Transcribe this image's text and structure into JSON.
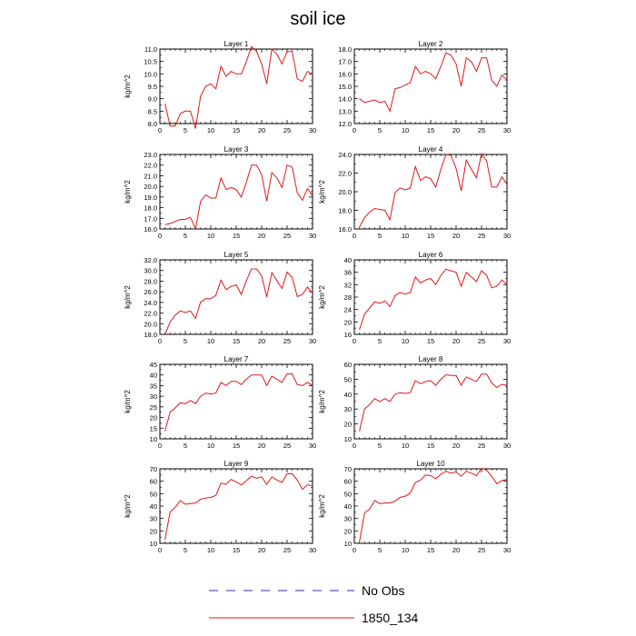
{
  "title": "soil ice",
  "legend": {
    "items": [
      {
        "label": "No Obs",
        "color": "#2f2fa0",
        "style": "dashed"
      },
      {
        "label": "1850_134",
        "color": "#e01818",
        "style": "solid"
      }
    ]
  },
  "chart_data": [
    {
      "type": "line",
      "title": "Layer 1",
      "xlabel": "",
      "ylabel": "kg/m^2",
      "xlim": [
        0,
        30
      ],
      "ylim": [
        8.0,
        11.0
      ],
      "xticks": [
        "0",
        "5",
        "10",
        "15",
        "20",
        "25",
        "30"
      ],
      "yticks": [
        "8.0",
        "8.5",
        "9.0",
        "9.5",
        "10.0",
        "10.5",
        "11.0"
      ],
      "x": [
        1,
        2,
        3,
        4,
        5,
        6,
        7,
        8,
        9,
        10,
        11,
        12,
        13,
        14,
        15,
        16,
        17,
        18,
        19,
        20,
        21,
        22,
        23,
        24,
        25,
        26,
        27,
        28,
        29,
        30
      ],
      "series": [
        {
          "name": "1850_134",
          "color": "#e01818",
          "values": [
            8.8,
            7.9,
            7.9,
            8.4,
            8.5,
            8.5,
            7.8,
            9.1,
            9.5,
            9.6,
            9.4,
            10.3,
            9.9,
            10.1,
            10.0,
            10.0,
            10.5,
            11.1,
            10.9,
            10.4,
            9.6,
            11.0,
            10.8,
            10.4,
            10.9,
            10.9,
            9.8,
            9.7,
            10.1,
            10.0
          ]
        }
      ]
    },
    {
      "type": "line",
      "title": "Layer 2",
      "xlabel": "",
      "ylabel": "",
      "xlim": [
        0,
        30
      ],
      "ylim": [
        12.0,
        18.0
      ],
      "xticks": [
        "0",
        "5",
        "10",
        "15",
        "20",
        "25",
        "30"
      ],
      "yticks": [
        "12.0",
        "13.0",
        "14.0",
        "15.0",
        "16.0",
        "17.0",
        "18.0"
      ],
      "x": [
        1,
        2,
        3,
        4,
        5,
        6,
        7,
        8,
        9,
        10,
        11,
        12,
        13,
        14,
        15,
        16,
        17,
        18,
        19,
        20,
        21,
        22,
        23,
        24,
        25,
        26,
        27,
        28,
        29,
        30
      ],
      "series": [
        {
          "name": "1850_134",
          "color": "#e01818",
          "values": [
            14.0,
            13.7,
            13.8,
            13.9,
            13.7,
            13.8,
            13.0,
            14.8,
            14.9,
            15.1,
            15.3,
            16.6,
            16.0,
            16.2,
            16.0,
            15.6,
            16.6,
            17.7,
            17.5,
            16.8,
            15.0,
            17.3,
            17.0,
            16.2,
            17.3,
            17.3,
            15.5,
            15.0,
            15.9,
            15.5
          ]
        }
      ]
    },
    {
      "type": "line",
      "title": "Layer 3",
      "xlabel": "",
      "ylabel": "kg/m^2",
      "xlim": [
        0,
        30
      ],
      "ylim": [
        16.0,
        23.0
      ],
      "xticks": [
        "0",
        "5",
        "10",
        "15",
        "20",
        "25",
        "30"
      ],
      "yticks": [
        "16.0",
        "17.0",
        "18.0",
        "19.0",
        "20.0",
        "21.0",
        "22.0",
        "23.0"
      ],
      "x": [
        1,
        2,
        3,
        4,
        5,
        6,
        7,
        8,
        9,
        10,
        11,
        12,
        13,
        14,
        15,
        16,
        17,
        18,
        19,
        20,
        21,
        22,
        23,
        24,
        25,
        26,
        27,
        28,
        29,
        30
      ],
      "series": [
        {
          "name": "1850_134",
          "color": "#e01818",
          "values": [
            16.4,
            16.5,
            16.7,
            16.9,
            16.9,
            17.1,
            16.0,
            18.6,
            19.2,
            18.9,
            18.9,
            20.8,
            19.7,
            19.9,
            19.7,
            19.0,
            20.4,
            22.0,
            22.0,
            21.1,
            18.6,
            21.3,
            20.8,
            19.9,
            22.0,
            21.8,
            19.4,
            18.7,
            19.8,
            19.1
          ]
        }
      ]
    },
    {
      "type": "line",
      "title": "Layer 4",
      "xlabel": "",
      "ylabel": "kg/m^2",
      "xlim": [
        0,
        30
      ],
      "ylim": [
        16.0,
        24.0
      ],
      "xticks": [
        "0",
        "5",
        "10",
        "15",
        "20",
        "25",
        "30"
      ],
      "yticks": [
        "16.0",
        "18.0",
        "20.0",
        "22.0",
        "24.0"
      ],
      "x": [
        1,
        2,
        3,
        4,
        5,
        6,
        7,
        8,
        9,
        10,
        11,
        12,
        13,
        14,
        15,
        16,
        17,
        18,
        19,
        20,
        21,
        22,
        23,
        24,
        25,
        26,
        27,
        28,
        29,
        30
      ],
      "series": [
        {
          "name": "1850_134",
          "color": "#e01818",
          "values": [
            16.2,
            17.2,
            17.8,
            18.2,
            18.1,
            18.0,
            17.0,
            19.9,
            20.4,
            20.2,
            20.4,
            22.7,
            21.2,
            21.6,
            21.4,
            20.5,
            22.4,
            24.0,
            23.9,
            22.5,
            20.1,
            23.4,
            22.4,
            21.5,
            24.1,
            23.3,
            20.5,
            20.5,
            21.6,
            20.8
          ]
        }
      ]
    },
    {
      "type": "line",
      "title": "Layer 5",
      "xlabel": "",
      "ylabel": "kg/m^2",
      "xlim": [
        0,
        30
      ],
      "ylim": [
        18.0,
        32.0
      ],
      "xticks": [
        "0",
        "5",
        "10",
        "15",
        "20",
        "25",
        "30"
      ],
      "yticks": [
        "18.0",
        "20.0",
        "22.0",
        "24.0",
        "26.0",
        "28.0",
        "30.0",
        "32.0"
      ],
      "x": [
        1,
        2,
        3,
        4,
        5,
        6,
        7,
        8,
        9,
        10,
        11,
        12,
        13,
        14,
        15,
        16,
        17,
        18,
        19,
        20,
        21,
        22,
        23,
        24,
        25,
        26,
        27,
        28,
        29,
        30
      ],
      "series": [
        {
          "name": "1850_134",
          "color": "#e01818",
          "values": [
            18.0,
            20.3,
            21.6,
            22.4,
            22.1,
            22.4,
            21.0,
            24.1,
            24.7,
            24.7,
            25.3,
            28.2,
            26.4,
            27.0,
            27.3,
            25.5,
            28.1,
            30.3,
            30.3,
            29.0,
            25.0,
            29.6,
            28.1,
            26.6,
            29.7,
            28.7,
            25.1,
            25.5,
            26.9,
            25.7
          ]
        }
      ]
    },
    {
      "type": "line",
      "title": "Layer 6",
      "xlabel": "",
      "ylabel": "kg/m^2",
      "xlim": [
        0,
        30
      ],
      "ylim": [
        16,
        40
      ],
      "xticks": [
        "0",
        "5",
        "10",
        "15",
        "20",
        "25",
        "30"
      ],
      "yticks": [
        "16",
        "20",
        "24",
        "28",
        "32",
        "36",
        "40"
      ],
      "x": [
        1,
        2,
        3,
        4,
        5,
        6,
        7,
        8,
        9,
        10,
        11,
        12,
        13,
        14,
        15,
        16,
        17,
        18,
        19,
        20,
        21,
        22,
        23,
        24,
        25,
        26,
        27,
        28,
        29,
        30
      ],
      "series": [
        {
          "name": "1850_134",
          "color": "#e01818",
          "values": [
            17.5,
            22.5,
            24.5,
            26.5,
            26.0,
            26.8,
            25.0,
            28.5,
            29.5,
            29.0,
            29.5,
            34.5,
            32.5,
            33.5,
            34.0,
            32.0,
            35.0,
            37.0,
            36.5,
            36.0,
            31.5,
            36.0,
            34.5,
            33.0,
            36.5,
            35.0,
            31.0,
            31.5,
            33.5,
            32.0
          ]
        }
      ]
    },
    {
      "type": "line",
      "title": "Layer 7",
      "xlabel": "",
      "ylabel": "kg/m^2",
      "xlim": [
        0,
        30
      ],
      "ylim": [
        10,
        45
      ],
      "xticks": [
        "0",
        "5",
        "10",
        "15",
        "20",
        "25",
        "30"
      ],
      "yticks": [
        "10",
        "15",
        "20",
        "25",
        "30",
        "35",
        "40",
        "45"
      ],
      "x": [
        1,
        2,
        3,
        4,
        5,
        6,
        7,
        8,
        9,
        10,
        11,
        12,
        13,
        14,
        15,
        16,
        17,
        18,
        19,
        20,
        21,
        22,
        23,
        24,
        25,
        26,
        27,
        28,
        29,
        30
      ],
      "series": [
        {
          "name": "1850_134",
          "color": "#e01818",
          "values": [
            13.5,
            22.5,
            24.5,
            27.0,
            26.5,
            28.0,
            26.5,
            30.0,
            31.5,
            31.0,
            31.5,
            36.5,
            35.0,
            37.0,
            37.0,
            35.5,
            38.0,
            40.0,
            40.0,
            40.0,
            35.0,
            39.5,
            38.0,
            36.5,
            40.5,
            40.5,
            35.5,
            35.0,
            36.5,
            35.0
          ]
        }
      ]
    },
    {
      "type": "line",
      "title": "Layer 8",
      "xlabel": "",
      "ylabel": "kg/m^2",
      "xlim": [
        0,
        30
      ],
      "ylim": [
        10,
        60
      ],
      "xticks": [
        "0",
        "5",
        "10",
        "15",
        "20",
        "25",
        "30"
      ],
      "yticks": [
        "10",
        "20",
        "30",
        "40",
        "50",
        "60"
      ],
      "x": [
        1,
        2,
        3,
        4,
        5,
        6,
        7,
        8,
        9,
        10,
        11,
        12,
        13,
        14,
        15,
        16,
        17,
        18,
        19,
        20,
        21,
        22,
        23,
        24,
        25,
        26,
        27,
        28,
        29,
        30
      ],
      "series": [
        {
          "name": "1850_134",
          "color": "#e01818",
          "values": [
            15.0,
            30.0,
            33.0,
            37.0,
            35.0,
            37.0,
            35.0,
            40.0,
            41.0,
            40.5,
            41.0,
            49.0,
            47.0,
            48.5,
            49.0,
            46.0,
            50.0,
            53.0,
            52.5,
            52.5,
            46.0,
            51.5,
            50.0,
            48.5,
            53.5,
            53.5,
            47.5,
            44.5,
            46.5,
            46.0
          ]
        }
      ]
    },
    {
      "type": "line",
      "title": "Layer 9",
      "xlabel": "",
      "ylabel": "kg/m^2",
      "xlim": [
        0,
        30
      ],
      "ylim": [
        10,
        70
      ],
      "xticks": [
        "0",
        "5",
        "10",
        "15",
        "20",
        "25",
        "30"
      ],
      "yticks": [
        "10",
        "20",
        "30",
        "40",
        "50",
        "60",
        "70"
      ],
      "x": [
        1,
        2,
        3,
        4,
        5,
        6,
        7,
        8,
        9,
        10,
        11,
        12,
        13,
        14,
        15,
        16,
        17,
        18,
        19,
        20,
        21,
        22,
        23,
        24,
        25,
        26,
        27,
        28,
        29,
        30
      ],
      "series": [
        {
          "name": "1850_134",
          "color": "#e01818",
          "values": [
            13.0,
            35.0,
            39.0,
            44.5,
            41.5,
            42.0,
            42.5,
            45.5,
            46.5,
            47.0,
            48.5,
            58.5,
            57.5,
            61.5,
            59.5,
            57.0,
            60.5,
            64.0,
            62.5,
            63.5,
            57.5,
            63.5,
            61.0,
            59.0,
            66.0,
            66.0,
            61.0,
            53.5,
            57.0,
            56.5
          ]
        }
      ]
    },
    {
      "type": "line",
      "title": "Layer 10",
      "xlabel": "",
      "ylabel": "kg/m^2",
      "xlim": [
        0,
        30
      ],
      "ylim": [
        10,
        70
      ],
      "xticks": [
        "0",
        "5",
        "10",
        "15",
        "20",
        "25",
        "30"
      ],
      "yticks": [
        "10",
        "20",
        "30",
        "40",
        "50",
        "60",
        "70"
      ],
      "x": [
        1,
        2,
        3,
        4,
        5,
        6,
        7,
        8,
        9,
        10,
        11,
        12,
        13,
        14,
        15,
        16,
        17,
        18,
        19,
        20,
        21,
        22,
        23,
        24,
        25,
        26,
        27,
        28,
        29,
        30
      ],
      "series": [
        {
          "name": "1850_134",
          "color": "#e01818",
          "values": [
            11.0,
            34.5,
            37.5,
            44.5,
            42.0,
            42.5,
            42.5,
            44.0,
            47.0,
            48.0,
            50.5,
            59.0,
            61.0,
            65.0,
            64.5,
            62.0,
            65.5,
            68.0,
            66.5,
            67.5,
            64.0,
            68.0,
            66.5,
            64.5,
            70.5,
            69.0,
            64.0,
            58.0,
            60.5,
            61.5
          ]
        }
      ]
    }
  ]
}
